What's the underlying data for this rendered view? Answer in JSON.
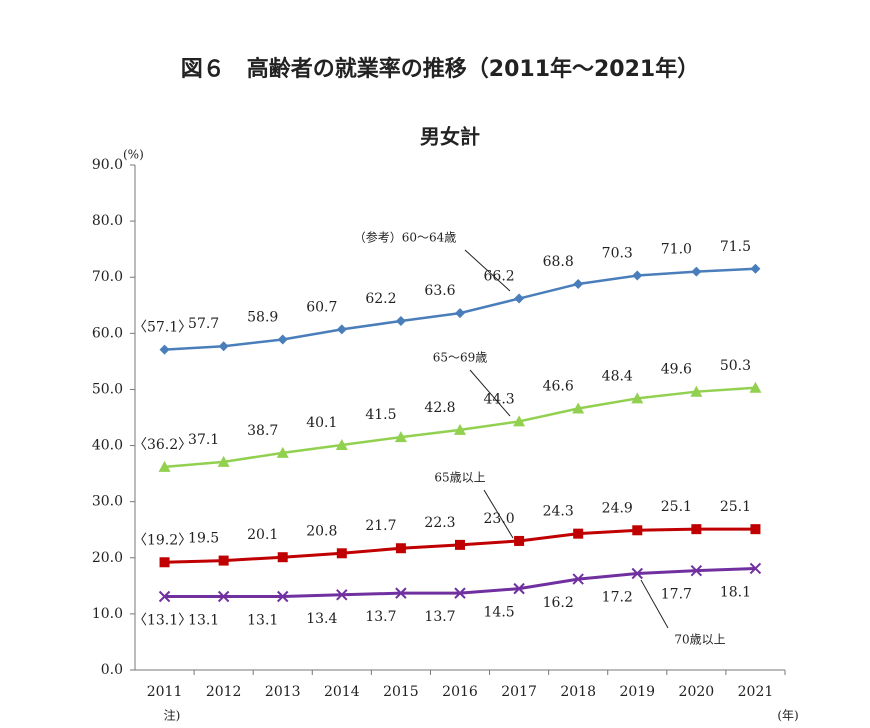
{
  "chart_data": {
    "type": "line",
    "title": "図６　高齢者の就業率の推移（2011年～2021年）",
    "subtitle": "男女計",
    "y_unit": "(%)",
    "x_unit": "(年)",
    "note": "注)",
    "categories": [
      "2011",
      "2012",
      "2013",
      "2014",
      "2015",
      "2016",
      "2017",
      "2018",
      "2019",
      "2020",
      "2021"
    ],
    "ylim": [
      0,
      90
    ],
    "yticks": [
      {
        "value": 0,
        "label": "0.0"
      },
      {
        "value": 10,
        "label": "10.0"
      },
      {
        "value": 20,
        "label": "20.0"
      },
      {
        "value": 30,
        "label": "30.0"
      },
      {
        "value": 40,
        "label": "40.0"
      },
      {
        "value": 50,
        "label": "50.0"
      },
      {
        "value": 60,
        "label": "60.0"
      },
      {
        "value": 70,
        "label": "70.0"
      },
      {
        "value": 80,
        "label": "80.0"
      },
      {
        "value": 90,
        "label": "90.0"
      }
    ],
    "grid": false,
    "series": [
      {
        "name": "（参考）60～64歳",
        "color": "#4a7ebb",
        "marker": "diamond",
        "values": [
          57.1,
          57.7,
          58.9,
          60.7,
          62.2,
          63.6,
          66.2,
          68.8,
          70.3,
          71.0,
          71.5
        ],
        "value_labels": [
          "〈57.1〉",
          "57.7",
          "58.9",
          "60.7",
          "62.2",
          "63.6",
          "66.2",
          "68.8",
          "70.3",
          "71.0",
          "71.5"
        ]
      },
      {
        "name": "65～69歳",
        "color": "#92d050",
        "marker": "triangle",
        "values": [
          36.2,
          37.1,
          38.7,
          40.1,
          41.5,
          42.8,
          44.3,
          46.6,
          48.4,
          49.6,
          50.3
        ],
        "value_labels": [
          "〈36.2〉",
          "37.1",
          "38.7",
          "40.1",
          "41.5",
          "42.8",
          "44.3",
          "46.6",
          "48.4",
          "49.6",
          "50.3"
        ]
      },
      {
        "name": "65歳以上",
        "color": "#c00000",
        "marker": "square",
        "values": [
          19.2,
          19.5,
          20.1,
          20.8,
          21.7,
          22.3,
          23.0,
          24.3,
          24.9,
          25.1,
          25.1
        ],
        "value_labels": [
          "〈19.2〉",
          "19.5",
          "20.1",
          "20.8",
          "21.7",
          "22.3",
          "23.0",
          "24.3",
          "24.9",
          "25.1",
          "25.1"
        ]
      },
      {
        "name": "70歳以上",
        "color": "#7030a0",
        "marker": "x",
        "values": [
          13.1,
          13.1,
          13.1,
          13.4,
          13.7,
          13.7,
          14.5,
          16.2,
          17.2,
          17.7,
          18.1
        ],
        "value_labels": [
          "〈13.1〉",
          "13.1",
          "13.1",
          "13.4",
          "13.7",
          "13.7",
          "14.5",
          "16.2",
          "17.2",
          "17.7",
          "18.1"
        ]
      }
    ]
  }
}
